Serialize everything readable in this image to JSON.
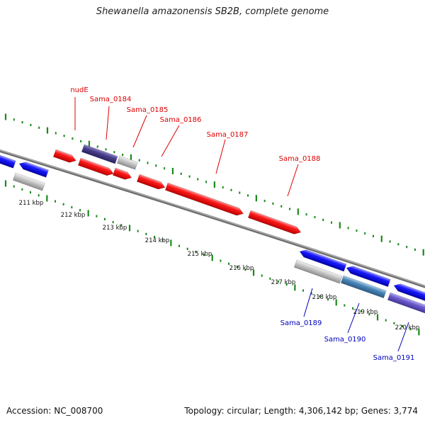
{
  "header": {
    "title": "Shewanella amazonensis SB2B, complete genome"
  },
  "footer": {
    "accession": "Accession: NC_008700",
    "info": "Topology: circular; Length: 4,306,142 bp; Genes: 3,774"
  },
  "colors": {
    "forward_gene": "#ee1111",
    "reverse_gene": "#1111ee",
    "hypothetical_gene": "#bdbdbd",
    "dark_purple_gene": "#4a3f8c",
    "steel_blue_gene": "#4a86b8",
    "light_purple_gene": "#6a5acd",
    "backbone": "#888888",
    "ticks": "#1a8a1a",
    "forward_label": "#dd0000",
    "reverse_label": "#0000bb"
  },
  "scale": {
    "unit": "kbp",
    "labels": [
      "211 kbp",
      "212 kbp",
      "213 kbp",
      "214 kbp",
      "215 kbp",
      "216 kbp",
      "217 kbp",
      "218 kbp",
      "219 kbp",
      "220 kbp"
    ]
  },
  "genes": {
    "forward": [
      "nudE",
      "Sama_0184",
      "Sama_0185",
      "Sama_0186",
      "Sama_0187",
      "Sama_0188"
    ],
    "reverse": [
      "Sama_0189",
      "Sama_0190",
      "Sama_0191"
    ]
  }
}
